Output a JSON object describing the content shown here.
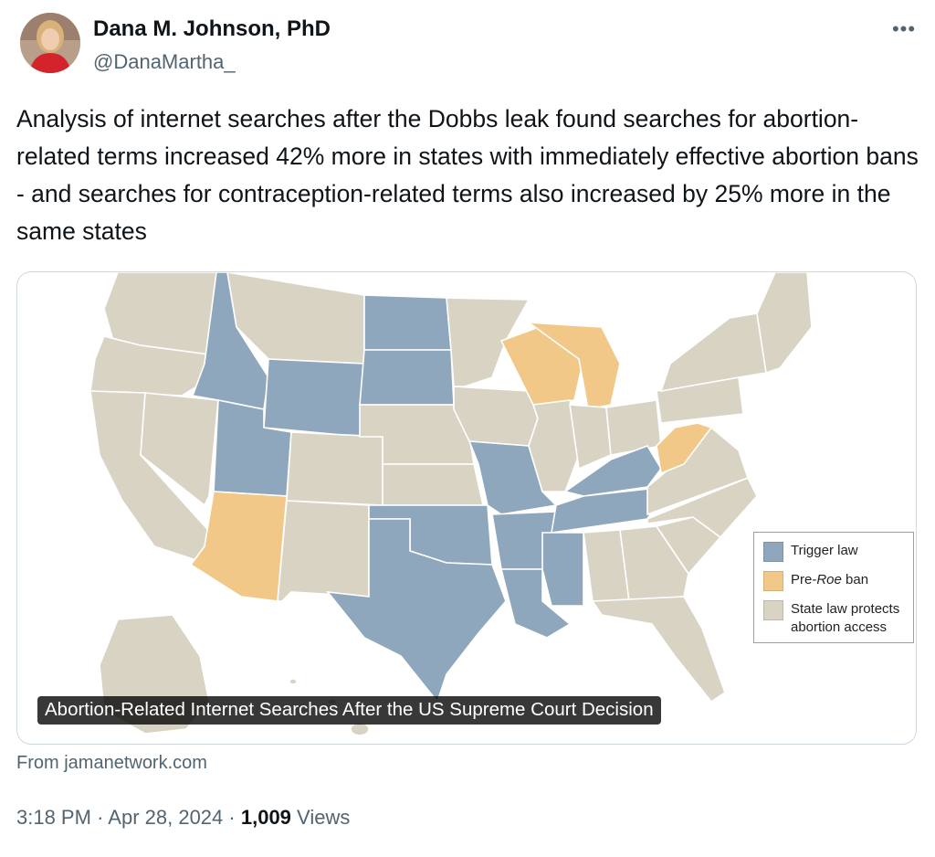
{
  "author": {
    "name": "Dana M. Johnson, PhD",
    "handle": "@DanaMartha_"
  },
  "tweet": {
    "text": "Analysis of internet searches after the Dobbs leak found  searches for abortion-related terms increased 42% more in states with immediately effective abortion bans - and searches for contraception-related terms also increased by 25% more in the same states"
  },
  "media_card": {
    "caption": "Abortion-Related Internet Searches After the US Supreme Court Decision",
    "legend": [
      {
        "label": "Trigger law",
        "color": "#8ea7bc"
      },
      {
        "label_before": "Pre-",
        "label_italic": "Roe",
        "label_after": " ban",
        "color": "#f1c888"
      },
      {
        "label": "State law protects abortion access",
        "color": "#d9d3c4"
      }
    ],
    "source": "From jamanetwork.com"
  },
  "meta": {
    "time": "3:18 PM",
    "date": "Apr 28, 2024",
    "views_count": "1,009",
    "views_label": "Views",
    "separator": "·"
  },
  "icons": {
    "more": "more-horizontal-icon"
  }
}
